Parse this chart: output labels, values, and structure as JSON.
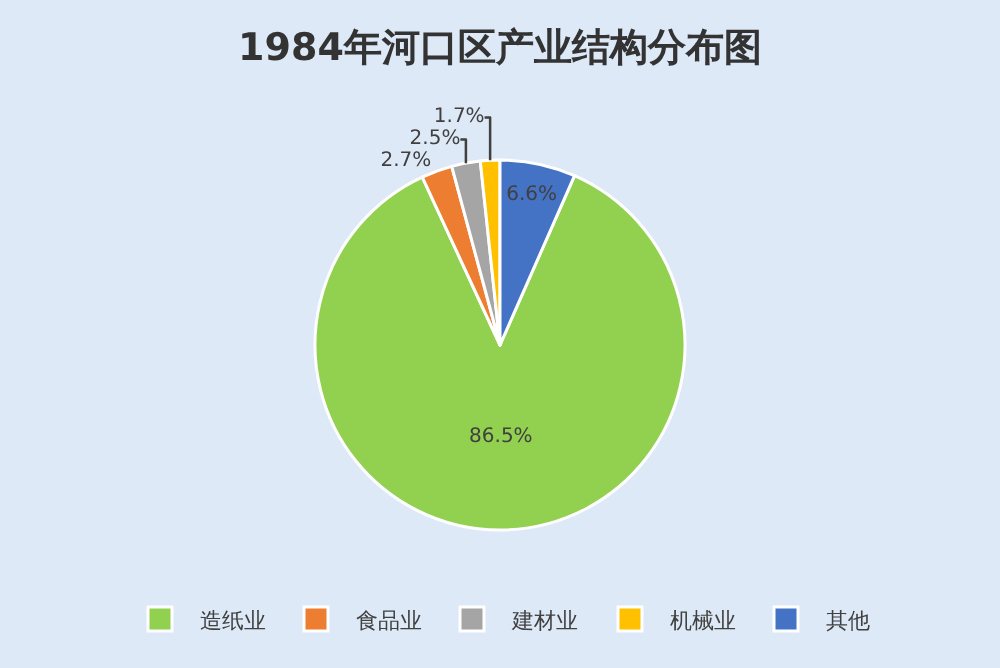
{
  "chart_data": {
    "type": "pie",
    "title": "1984年河口区产业结构分布图",
    "categories": [
      "造纸业",
      "食品业",
      "建材业",
      "机械业",
      "其他"
    ],
    "values": [
      86.5,
      2.7,
      2.5,
      1.7,
      6.6
    ],
    "value_labels": [
      "86.5%",
      "2.7%",
      "2.5%",
      "1.7%",
      "6.6%"
    ],
    "colors": [
      "#92d050",
      "#ed7d31",
      "#a5a5a5",
      "#ffc000",
      "#4472c4"
    ],
    "legend": "bottom"
  }
}
